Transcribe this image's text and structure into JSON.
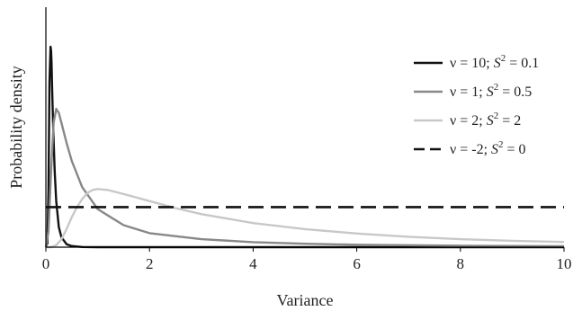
{
  "chart_data": {
    "type": "line",
    "title": "",
    "xlabel": "Variance",
    "ylabel": "Probability density",
    "xlim": [
      0,
      10
    ],
    "xticks": [
      0,
      2,
      4,
      6,
      8,
      10
    ],
    "y_tick_labels_shown": false,
    "grid": false,
    "legend_position": "right",
    "series": [
      {
        "name": "ν = 10; S² = 0.1",
        "legend_parts": {
          "nu": "ν = 10; ",
          "s": "S",
          "sup": "2",
          "rest": " = 0.1"
        },
        "color": "#111111",
        "dash": "solid",
        "x": [
          0.0,
          0.03,
          0.05,
          0.07,
          0.09,
          0.1,
          0.11,
          0.12,
          0.14,
          0.17,
          0.2,
          0.25,
          0.3,
          0.4,
          0.5,
          0.7,
          1.0,
          1.5,
          10.0
        ],
        "y": [
          0.0,
          0.02,
          0.28,
          0.82,
          1.0,
          0.98,
          0.92,
          0.8,
          0.6,
          0.38,
          0.23,
          0.1,
          0.05,
          0.015,
          0.006,
          0.001,
          0.0,
          0.0,
          0.0
        ]
      },
      {
        "name": "ν = 1; S² = 0.5",
        "legend_parts": {
          "nu": "ν = 1; ",
          "s": "S",
          "sup": "2",
          "rest": " = 0.5"
        },
        "color": "#888888",
        "dash": "solid",
        "x": [
          0.0,
          0.05,
          0.1,
          0.15,
          0.2,
          0.25,
          0.3,
          0.4,
          0.5,
          0.7,
          1.0,
          1.5,
          2.0,
          3.0,
          4.0,
          5.0,
          6.0,
          8.0,
          10.0
        ],
        "y": [
          0.0,
          0.08,
          0.38,
          0.62,
          0.69,
          0.67,
          0.62,
          0.52,
          0.43,
          0.3,
          0.19,
          0.11,
          0.07,
          0.04,
          0.025,
          0.017,
          0.012,
          0.007,
          0.005
        ]
      },
      {
        "name": "ν = 2; S² = 2",
        "legend_parts": {
          "nu": "ν = 2; ",
          "s": "S",
          "sup": "2",
          "rest": " = 2"
        },
        "color": "#c8c8c8",
        "dash": "solid",
        "x": [
          0.0,
          0.1,
          0.2,
          0.3,
          0.4,
          0.5,
          0.6,
          0.7,
          0.8,
          0.9,
          1.0,
          1.2,
          1.5,
          2.0,
          2.5,
          3.0,
          4.0,
          5.0,
          6.0,
          7.0,
          8.0,
          9.0,
          10.0
        ],
        "y": [
          0.0,
          0.0,
          0.01,
          0.04,
          0.09,
          0.15,
          0.2,
          0.24,
          0.27,
          0.285,
          0.29,
          0.285,
          0.265,
          0.23,
          0.195,
          0.165,
          0.12,
          0.09,
          0.068,
          0.052,
          0.04,
          0.032,
          0.026
        ]
      },
      {
        "name": "ν = -2; S² = 0",
        "legend_parts": {
          "nu": "ν = -2; ",
          "s": "S",
          "sup": "2",
          "rest": " = 0"
        },
        "color": "#111111",
        "dash": "dashed",
        "x": [
          0.0,
          10.0
        ],
        "y": [
          0.2,
          0.2
        ]
      }
    ]
  }
}
